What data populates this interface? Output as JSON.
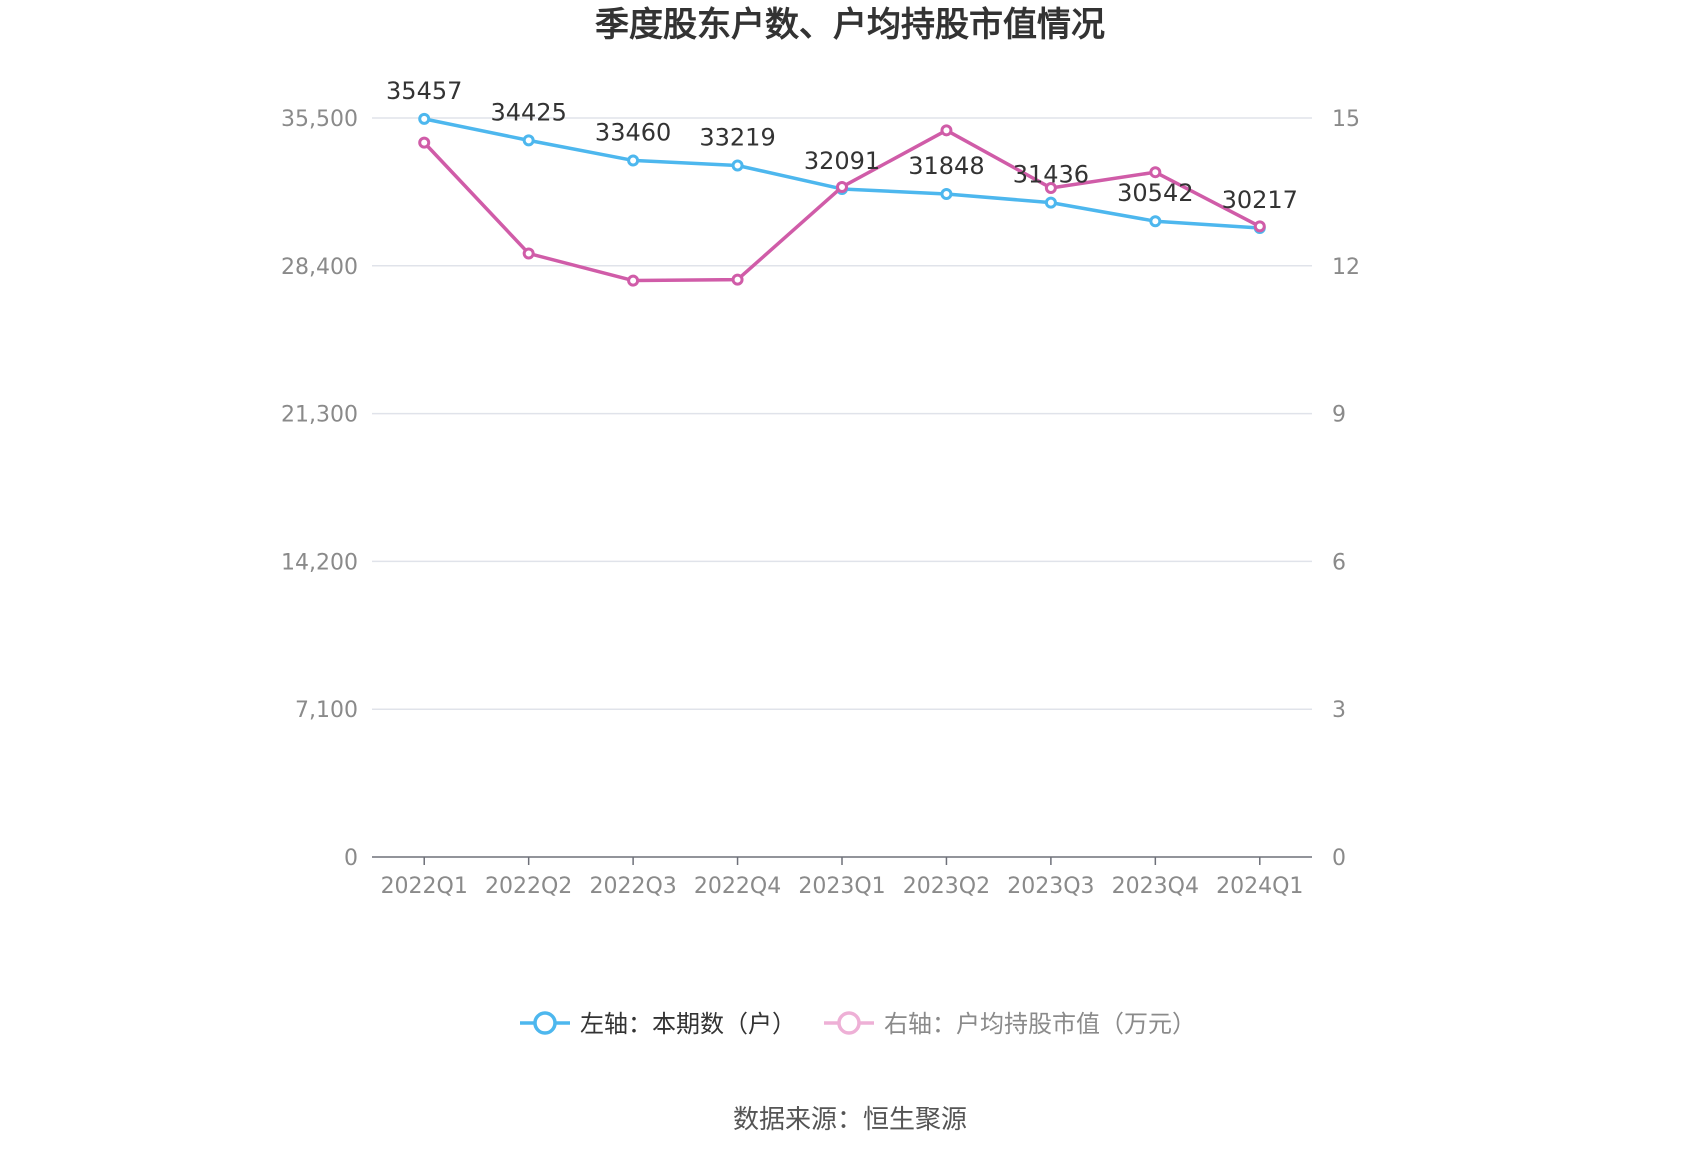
{
  "chart_data": {
    "type": "line",
    "title": "季度股东户数、户均持股市值情况",
    "categories": [
      "2022Q1",
      "2022Q2",
      "2022Q3",
      "2022Q4",
      "2023Q1",
      "2023Q2",
      "2023Q3",
      "2023Q4",
      "2024Q1"
    ],
    "series": [
      {
        "name": "左轴：本期数（户）",
        "axis": "left",
        "color": "#4db7ee",
        "values": [
          35457,
          34425,
          33460,
          33219,
          32091,
          31848,
          31436,
          30542,
          30217
        ],
        "labels": [
          "35457",
          "34425",
          "33460",
          "33219",
          "32091",
          "31848",
          "31436",
          "30542",
          "30217"
        ]
      },
      {
        "name": "右轴：户均持股市值（万元）",
        "axis": "right",
        "color": "#d05ca8",
        "legend_color": "#eeb0d6",
        "values": [
          14.5,
          12.25,
          11.7,
          11.72,
          13.6,
          14.75,
          13.58,
          13.9,
          12.8
        ]
      }
    ],
    "y_left": {
      "ylim": [
        0,
        35500
      ],
      "ticks": [
        0,
        7100,
        14200,
        21300,
        28400,
        35500
      ],
      "tick_labels": [
        "0",
        "7,100",
        "14,200",
        "21,300",
        "28,400",
        "35,500"
      ]
    },
    "y_right": {
      "ylim": [
        0,
        15
      ],
      "ticks": [
        0,
        3,
        6,
        9,
        12,
        15
      ],
      "tick_labels": [
        "0",
        "3",
        "6",
        "9",
        "12",
        "15"
      ]
    },
    "grid": true,
    "legend_position": "bottom",
    "source": "数据来源：恒生聚源"
  }
}
